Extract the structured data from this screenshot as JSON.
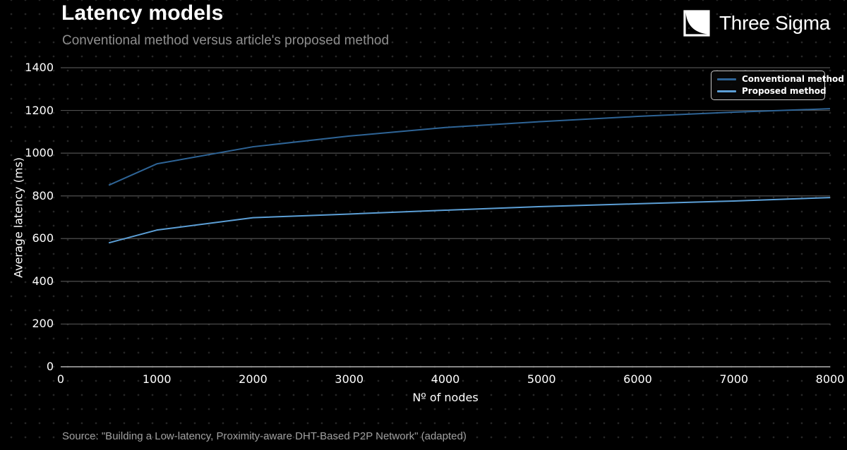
{
  "header": {
    "title": "Latency models",
    "subtitle": "Conventional method versus article's proposed method"
  },
  "brand": {
    "name": "Three Sigma",
    "logo_icon": "decay-curve-square"
  },
  "chart_data": {
    "type": "line",
    "title": "Latency models",
    "xlabel": "Nº of nodes",
    "ylabel": "Average latency (ms)",
    "xlim": [
      0,
      8000
    ],
    "ylim": [
      0,
      1400
    ],
    "xticks": [
      0,
      1000,
      2000,
      3000,
      4000,
      5000,
      6000,
      7000,
      8000
    ],
    "yticks": [
      0,
      200,
      400,
      600,
      800,
      1000,
      1200,
      1400
    ],
    "grid": "horizontal",
    "legend_position": "top-right",
    "x": [
      500,
      1000,
      2000,
      3000,
      4000,
      5000,
      6000,
      7000,
      8000
    ],
    "series": [
      {
        "name": "Conventional method",
        "color": "#2e6496",
        "values": [
          850,
          950,
          1030,
          1080,
          1120,
          1148,
          1172,
          1192,
          1208
        ]
      },
      {
        "name": "Proposed method",
        "color": "#5c9fd6",
        "values": [
          580,
          640,
          698,
          715,
          733,
          750,
          763,
          776,
          792
        ]
      }
    ]
  },
  "footer": {
    "source": "Source: \"Building a Low-latency, Proximity-aware DHT-Based P2P Network\" (adapted)"
  },
  "colors": {
    "background": "#000000",
    "grid": "#4f4f4f",
    "axis_zero_line": "#9a9a9a",
    "title_text": "#ffffff",
    "subtitle_text": "#8e8e8e",
    "source_text": "#a0a0a0"
  }
}
